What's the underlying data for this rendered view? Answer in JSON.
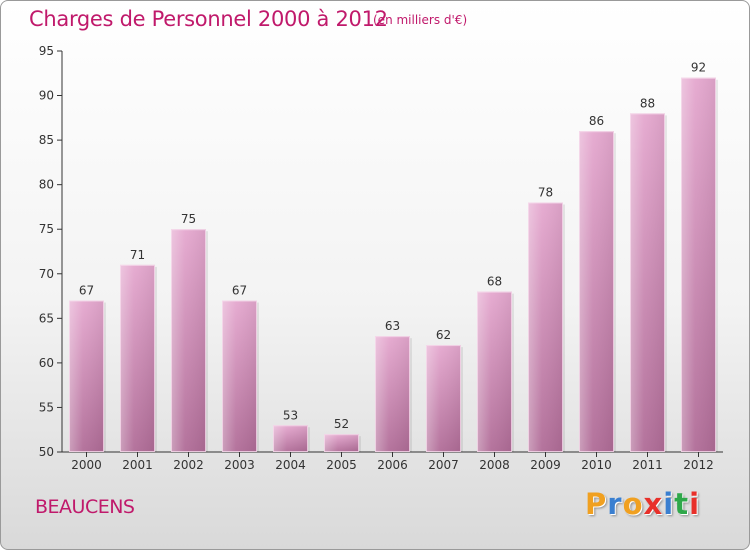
{
  "header": {
    "title": "Charges de Personnel 2000 à 2012",
    "subtitle": "(en milliers d'€)"
  },
  "footer": {
    "commune": "BEAUCENS",
    "logo": {
      "letters": [
        "P",
        "r",
        "o",
        "x",
        "i",
        "t",
        "i"
      ]
    }
  },
  "colors": {
    "title": "#c0196b",
    "bar_top": "#e5a8cf",
    "bar_bottom": "#b06c97",
    "axis": "#333333",
    "logo_letters": [
      "#f0a020",
      "#3a7fd0",
      "#f0a020",
      "#e8302a",
      "#3a7fd0",
      "#2fa84a",
      "#e8302a"
    ]
  },
  "chart_data": {
    "type": "bar",
    "title": "Charges de Personnel 2000 à 2012",
    "subtitle": "(en milliers d'€)",
    "categories": [
      "2000",
      "2001",
      "2002",
      "2003",
      "2004",
      "2005",
      "2006",
      "2007",
      "2008",
      "2009",
      "2010",
      "2011",
      "2012"
    ],
    "values": [
      67,
      71,
      75,
      67,
      53,
      52,
      63,
      62,
      68,
      78,
      86,
      88,
      92
    ],
    "ylim": [
      50,
      95
    ],
    "yticks": [
      50,
      55,
      60,
      65,
      70,
      75,
      80,
      85,
      90,
      95
    ],
    "grid": false,
    "legend": "none"
  }
}
